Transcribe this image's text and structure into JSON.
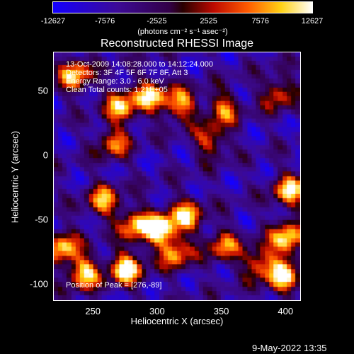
{
  "colorbar": {
    "ticks": [
      "-12627",
      "-7576",
      "-2525",
      "2525",
      "7576",
      "12627"
    ],
    "unit_label": "(photons cm⁻² s⁻¹ asec⁻²)",
    "colormap": "blue-purple-red-orange-yellow-white"
  },
  "chart_data": {
    "type": "heatmap",
    "title": "Reconstructed RHESSI Image",
    "xlabel": "Heliocentric X (arcsec)",
    "ylabel": "Heliocentric Y (arcsec)",
    "xlim": [
      219,
      412
    ],
    "ylim": [
      -113,
      80
    ],
    "x_ticks": [
      "250",
      "300",
      "350",
      "400"
    ],
    "y_ticks": [
      "50",
      "0",
      "-50",
      "-100"
    ],
    "value_range": [
      -12627,
      12627
    ],
    "peak": [
      276,
      -89
    ],
    "info_lines": [
      "13-Oct-2009 14:08:28.000 to 14:12:24.000",
      "Detectors: 3F 4F 5F 6F 7F 8F, Att 3",
      "Energy Range: 3.0 - 6.0 keV",
      "Clean      Total counts: 1.21E+05"
    ],
    "peak_label": "Position of Peak = [276,-89]",
    "hotspots": [
      {
        "x": 236,
        "y": 62,
        "intensity": 9500
      },
      {
        "x": 272,
        "y": 38,
        "intensity": 9000
      },
      {
        "x": 295,
        "y": 46,
        "intensity": 8800
      },
      {
        "x": 318,
        "y": 39,
        "intensity": 8200
      },
      {
        "x": 352,
        "y": 36,
        "intensity": 6000
      },
      {
        "x": 395,
        "y": 48,
        "intensity": 5200
      },
      {
        "x": 258,
        "y": -36,
        "intensity": 7600
      },
      {
        "x": 303,
        "y": -58,
        "intensity": 12000
      },
      {
        "x": 283,
        "y": -55,
        "intensity": 8500
      },
      {
        "x": 323,
        "y": -47,
        "intensity": 9000
      },
      {
        "x": 315,
        "y": -77,
        "intensity": 7000
      },
      {
        "x": 352,
        "y": -71,
        "intensity": 6200
      },
      {
        "x": 380,
        "y": -84,
        "intensity": 6500
      },
      {
        "x": 404,
        "y": -28,
        "intensity": 10000
      },
      {
        "x": 402,
        "y": -66,
        "intensity": 12000
      },
      {
        "x": 399,
        "y": -95,
        "intensity": 10500
      },
      {
        "x": 226,
        "y": -72,
        "intensity": 9500
      },
      {
        "x": 243,
        "y": -92,
        "intensity": 10500
      },
      {
        "x": 276,
        "y": -89,
        "intensity": 12627
      },
      {
        "x": 266,
        "y": 9,
        "intensity": 5500
      },
      {
        "x": 342,
        "y": 11,
        "intensity": 4800
      }
    ]
  },
  "datestamp": "9-May-2022 13:35"
}
